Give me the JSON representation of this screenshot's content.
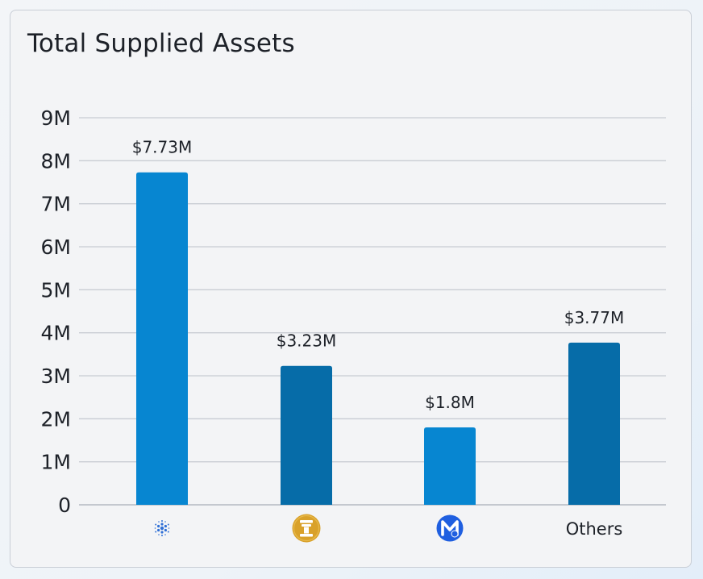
{
  "card": {
    "title": "Total Supplied Assets"
  },
  "chart_data": {
    "type": "bar",
    "title": "Total Supplied Assets",
    "categories": [
      {
        "label": "",
        "icon": "cardano-asterisk-icon"
      },
      {
        "label": "",
        "icon": "gold-pillar-coin-icon"
      },
      {
        "label": "",
        "icon": "blue-m-coin-icon"
      },
      {
        "label": "Others",
        "icon": ""
      }
    ],
    "values": [
      7.73,
      3.23,
      1.8,
      3.77
    ],
    "value_labels": [
      "$7.73M",
      "$3.23M",
      "$1.8M",
      "$3.77M"
    ],
    "unit": "M",
    "ylim": [
      0,
      9
    ],
    "yticks": [
      "0",
      "1M",
      "2M",
      "3M",
      "4M",
      "5M",
      "6M",
      "7M",
      "8M",
      "9M"
    ],
    "grid": true,
    "legend": "none",
    "colors": [
      "#0786d1",
      "#066ca8",
      "#0786d1",
      "#066ca8"
    ],
    "grid_color": "#c8ccd3"
  }
}
